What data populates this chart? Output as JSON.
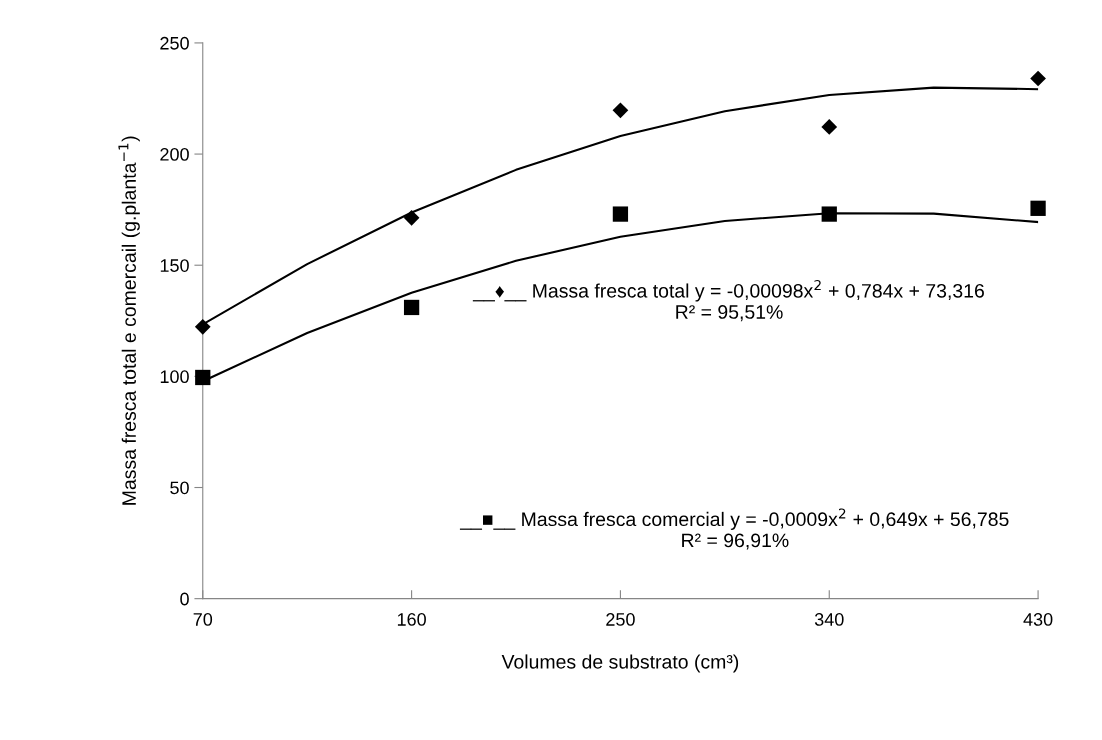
{
  "chart_data": {
    "type": "scatter",
    "xlabel": "Volumes de substrato (cm³)",
    "ylabel": "Massa fresca total e comercail (g.planta$^{−1}$)",
    "x": [
      70,
      160,
      250,
      340,
      430
    ],
    "series": [
      {
        "marker": "diamond",
        "color": "#000000",
        "values": [
          122.3,
          171.3,
          219.7,
          212.2,
          234
        ]
      },
      {
        "marker": "square",
        "color": "#000000",
        "values": [
          99.5,
          131,
          173,
          173,
          175.6
        ]
      },
      {
        "type": "line",
        "marker": "none",
        "color": "#000000",
        "x": [
          70,
          115,
          160,
          205,
          250,
          295,
          340,
          385,
          430
        ],
        "values": [
          123.4,
          150.5,
          173.7,
          192.9,
          208.1,
          219.3,
          226.6,
          229.9,
          229.2
        ]
      },
      {
        "type": "line",
        "marker": "none",
        "color": "#000000",
        "x": [
          70,
          115,
          160,
          205,
          250,
          295,
          340,
          385,
          430
        ],
        "values": [
          97.8,
          119.5,
          137.6,
          152.0,
          162.8,
          169.9,
          173.4,
          173.2,
          169.4
        ]
      }
    ],
    "xlim": [
      70,
      430
    ],
    "xticks": [
      70,
      160,
      250,
      340,
      430
    ],
    "ylim": [
      0,
      250
    ],
    "yticks": [
      0,
      50,
      100,
      150,
      200,
      250
    ],
    "grid": false,
    "legend": false,
    "annotations": [
      "__♦__ Massa fresca total y = -0,00098x$^{2}$ + 0,784x + 73,316\nR² = 95,51%",
      "__■__ Massa fresca comercial y = -0,0009x$^{2}$ + 0,649x + 56,785\nR² = 96,91%"
    ]
  }
}
